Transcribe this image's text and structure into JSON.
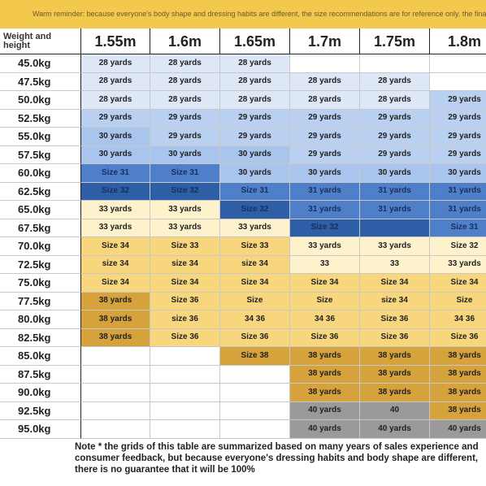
{
  "banner": "Warm reminder: because everyone's body shape and dressing habits are different, the size recommendations are for reference only. the final",
  "table": {
    "corner": "Weight and height",
    "heights": [
      "1.55m",
      "1.6m",
      "1.65m",
      "1.7m",
      "1.75m",
      "1.8m"
    ],
    "weights": [
      "45.0kg",
      "47.5kg",
      "50.0kg",
      "52.5kg",
      "55.0kg",
      "57.5kg",
      "60.0kg",
      "62.5kg",
      "65.0kg",
      "67.5kg",
      "70.0kg",
      "72.5kg",
      "75.0kg",
      "77.5kg",
      "80.0kg",
      "82.5kg",
      "85.0kg",
      "87.5kg",
      "90.0kg",
      "92.5kg",
      "95.0kg"
    ],
    "rows": [
      [
        "28 yards",
        "28 yards",
        "28 yards",
        "",
        "",
        ""
      ],
      [
        "28 yards",
        "28 yards",
        "28 yards",
        "28 yards",
        "28 yards",
        ""
      ],
      [
        "28 yards",
        "28 yards",
        "28 yards",
        "28 yards",
        "28 yards",
        "29 yards"
      ],
      [
        "29 yards",
        "29 yards",
        "29 yards",
        "29 yards",
        "29 yards",
        "29 yards"
      ],
      [
        "30 yards",
        "29 yards",
        "29 yards",
        "29 yards",
        "29 yards",
        "29 yards"
      ],
      [
        "30 yards",
        "30 yards",
        "30 yards",
        "29 yards",
        "29 yards",
        "29 yards"
      ],
      [
        "Size 31",
        "Size 31",
        "30 yards",
        "30 yards",
        "30 yards",
        "30 yards"
      ],
      [
        "Size 32",
        "Size 32",
        "Size 31",
        "31 yards",
        "31 yards",
        "31 yards"
      ],
      [
        "33 yards",
        "33 yards",
        "Size 32",
        "31 yards",
        "31 yards",
        "31 yards"
      ],
      [
        "33 yards",
        "33 yards",
        "33 yards",
        "Size 32",
        "",
        "Size 31"
      ],
      [
        "Size 34",
        "Size 33",
        "Size 33",
        "33 yards",
        "33 yards",
        "Size 32"
      ],
      [
        "size 34",
        "size 34",
        "size 34",
        "33",
        "33",
        "33 yards"
      ],
      [
        "Size 34",
        "Size 34",
        "Size 34",
        "Size 34",
        "Size 34",
        "Size 34"
      ],
      [
        "38 yards",
        "Size 36",
        "Size",
        "Size",
        "size 34",
        "Size"
      ],
      [
        "38 yards",
        "size 36",
        "34 36",
        "34 36",
        "Size 36",
        "34 36"
      ],
      [
        "38 yards",
        "Size 36",
        "Size 36",
        "Size 36",
        "Size 36",
        "Size 36"
      ],
      [
        "",
        "",
        "Size 38",
        "38 yards",
        "38 yards",
        "38 yards"
      ],
      [
        "",
        "",
        "",
        "38 yards",
        "38 yards",
        "38 yards"
      ],
      [
        "",
        "",
        "",
        "38 yards",
        "38 yards",
        "38 yards"
      ],
      [
        "",
        "",
        "",
        "40 yards",
        "40",
        "38 yards"
      ],
      [
        "",
        "",
        "",
        "40 yards",
        "40 yards",
        "40 yards"
      ]
    ],
    "colors": [
      [
        "#dde7f6",
        "#dde7f6",
        "#dde7f6",
        "#ffffff",
        "#ffffff",
        "#ffffff"
      ],
      [
        "#dde7f6",
        "#dde7f6",
        "#dde7f6",
        "#dde7f6",
        "#dde7f6",
        "#ffffff"
      ],
      [
        "#dde7f6",
        "#dde7f6",
        "#dde7f6",
        "#dde7f6",
        "#dde7f6",
        "#b9d0f0"
      ],
      [
        "#b9d0f0",
        "#b9d0f0",
        "#b9d0f0",
        "#b9d0f0",
        "#b9d0f0",
        "#b9d0f0"
      ],
      [
        "#a9c5ee",
        "#b9d0f0",
        "#b9d0f0",
        "#b9d0f0",
        "#b9d0f0",
        "#b9d0f0"
      ],
      [
        "#a9c5ee",
        "#a9c5ee",
        "#a9c5ee",
        "#b9d0f0",
        "#b9d0f0",
        "#b9d0f0"
      ],
      [
        "#4f7fc8",
        "#4f7fc8",
        "#a9c5ee",
        "#a9c5ee",
        "#a9c5ee",
        "#a9c5ee"
      ],
      [
        "#2d5ea6",
        "#2d5ea6",
        "#4f7fc8",
        "#4f7fc8",
        "#4f7fc8",
        "#4f7fc8"
      ],
      [
        "#fdf2cc",
        "#fdf2cc",
        "#2d5ea6",
        "#4f7fc8",
        "#4f7fc8",
        "#4f7fc8"
      ],
      [
        "#fdf2cc",
        "#fdf2cc",
        "#fdf2cc",
        "#2d5ea6",
        "#2d5ea6",
        "#4f7fc8"
      ],
      [
        "#f7d67e",
        "#f7d67e",
        "#f7d67e",
        "#fdf2cc",
        "#fdf2cc",
        "#fdf2cc"
      ],
      [
        "#f7d67e",
        "#f7d67e",
        "#f7d67e",
        "#fdf2cc",
        "#fdf2cc",
        "#fdf2cc"
      ],
      [
        "#f7d67e",
        "#f7d67e",
        "#f7d67e",
        "#f7d67e",
        "#f7d67e",
        "#f7d67e"
      ],
      [
        "#d6a23c",
        "#f7d67e",
        "#f7d67e",
        "#f7d67e",
        "#f7d67e",
        "#f7d67e"
      ],
      [
        "#d6a23c",
        "#f7d67e",
        "#f7d67e",
        "#f7d67e",
        "#f7d67e",
        "#f7d67e"
      ],
      [
        "#d6a23c",
        "#f7d67e",
        "#f7d67e",
        "#f7d67e",
        "#f7d67e",
        "#f7d67e"
      ],
      [
        "#ffffff",
        "#ffffff",
        "#d6a23c",
        "#d6a23c",
        "#d6a23c",
        "#d6a23c"
      ],
      [
        "#ffffff",
        "#ffffff",
        "#ffffff",
        "#d6a23c",
        "#d6a23c",
        "#d6a23c"
      ],
      [
        "#ffffff",
        "#ffffff",
        "#ffffff",
        "#d6a23c",
        "#d6a23c",
        "#d6a23c"
      ],
      [
        "#ffffff",
        "#ffffff",
        "#ffffff",
        "#9a9a9a",
        "#9a9a9a",
        "#d6a23c"
      ],
      [
        "#ffffff",
        "#ffffff",
        "#ffffff",
        "#9a9a9a",
        "#9a9a9a",
        "#9a9a9a"
      ]
    ]
  },
  "note": "Note * the grids of this table are summarized based on many years of sales experience and consumer feedback, but because everyone's dressing habits and body shape are different, there is no guarantee that it will be 100%"
}
